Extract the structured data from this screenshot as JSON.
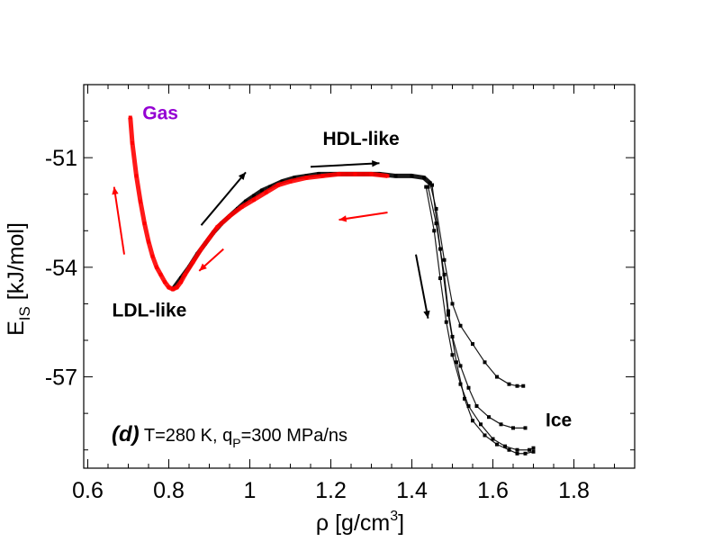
{
  "chart_data": {
    "type": "line",
    "title": "",
    "xlabel": {
      "symbol": "ρ",
      "unit": "[g/cm",
      "unit_sup": "3",
      "unit_end": "]"
    },
    "ylabel": {
      "main": "E",
      "sub": "IS",
      "unit": " [kJ/mol]"
    },
    "xlim": [
      0.59,
      1.95
    ],
    "ylim": [
      -59.5,
      -49.0
    ],
    "x_ticks": [
      0.6,
      0.8,
      1.0,
      1.2,
      1.4,
      1.6,
      1.8
    ],
    "x_tick_labels": [
      "0.6",
      "0.8",
      "1",
      "1.2",
      "1.4",
      "1.6",
      "1.8"
    ],
    "y_ticks": [
      -51,
      -54,
      -57
    ],
    "y_tick_labels": [
      "-51",
      "-54",
      "-57"
    ],
    "colors": {
      "compression": "#000000",
      "decompression": "#ff0000",
      "gas_label": "#9400d3"
    },
    "series": [
      {
        "name": "compression",
        "color": "#000000",
        "x": [
          0.81,
          0.83,
          0.85,
          0.87,
          0.89,
          0.91,
          0.93,
          0.95,
          0.97,
          0.99,
          1.01,
          1.03,
          1.05,
          1.08,
          1.11,
          1.14,
          1.17,
          1.2,
          1.24,
          1.28,
          1.32,
          1.36,
          1.4,
          1.43,
          1.445
        ],
        "y": [
          -54.6,
          -54.3,
          -54.0,
          -53.65,
          -53.35,
          -53.05,
          -52.8,
          -52.6,
          -52.4,
          -52.2,
          -52.05,
          -51.9,
          -51.8,
          -51.65,
          -51.55,
          -51.5,
          -51.45,
          -51.45,
          -51.45,
          -51.45,
          -51.45,
          -51.5,
          -51.5,
          -51.55,
          -51.7
        ]
      },
      {
        "name": "ice_branch_1",
        "color": "#000000",
        "x": [
          1.445,
          1.46,
          1.48,
          1.5,
          1.52,
          1.55,
          1.58,
          1.61,
          1.64,
          1.66,
          1.675
        ],
        "y": [
          -51.7,
          -52.4,
          -53.8,
          -55.0,
          -55.6,
          -56.1,
          -56.6,
          -57.0,
          -57.2,
          -57.25,
          -57.25
        ]
      },
      {
        "name": "ice_branch_2",
        "color": "#000000",
        "x": [
          1.44,
          1.46,
          1.48,
          1.49,
          1.5,
          1.52,
          1.54,
          1.56,
          1.59,
          1.62,
          1.65,
          1.68
        ],
        "y": [
          -51.8,
          -52.8,
          -54.2,
          -55.2,
          -55.9,
          -56.7,
          -57.3,
          -57.8,
          -58.1,
          -58.3,
          -58.4,
          -58.4
        ]
      },
      {
        "name": "ice_branch_3",
        "color": "#000000",
        "x": [
          1.435,
          1.455,
          1.47,
          1.485,
          1.5,
          1.52,
          1.54,
          1.57,
          1.6,
          1.63,
          1.66,
          1.69,
          1.7
        ],
        "y": [
          -51.8,
          -53.0,
          -54.3,
          -55.5,
          -56.4,
          -57.2,
          -57.8,
          -58.3,
          -58.7,
          -58.9,
          -59.0,
          -59.0,
          -58.95
        ]
      },
      {
        "name": "ice_branch_4",
        "color": "#000000",
        "x": [
          1.45,
          1.47,
          1.49,
          1.51,
          1.53,
          1.55,
          1.58,
          1.61,
          1.64,
          1.66,
          1.68,
          1.7
        ],
        "y": [
          -51.75,
          -53.5,
          -55.3,
          -56.6,
          -57.6,
          -58.2,
          -58.6,
          -58.85,
          -59.0,
          -59.1,
          -59.1,
          -59.05
        ]
      },
      {
        "name": "decompression",
        "color": "#ff0000",
        "x": [
          1.34,
          1.3,
          1.26,
          1.22,
          1.18,
          1.14,
          1.1,
          1.07,
          1.04,
          1.01,
          0.98,
          0.95,
          0.92,
          0.9,
          0.88,
          0.86,
          0.84,
          0.83,
          0.82,
          0.81,
          0.8,
          0.79,
          0.78,
          0.77,
          0.76,
          0.75,
          0.74,
          0.73,
          0.72,
          0.71,
          0.705
        ],
        "y": [
          -51.5,
          -51.45,
          -51.45,
          -51.45,
          -51.5,
          -51.55,
          -51.65,
          -51.75,
          -51.95,
          -52.15,
          -52.35,
          -52.6,
          -52.9,
          -53.2,
          -53.5,
          -53.85,
          -54.2,
          -54.4,
          -54.55,
          -54.6,
          -54.55,
          -54.4,
          -54.2,
          -54.0,
          -53.7,
          -53.3,
          -52.8,
          -52.2,
          -51.5,
          -50.6,
          -49.9
        ]
      }
    ],
    "annotations": [
      {
        "text": "Gas",
        "x": 0.735,
        "y": -49.95,
        "color": "#9400d3"
      },
      {
        "text": "HDL-like",
        "x": 1.18,
        "y": -50.65,
        "color": "#000000"
      },
      {
        "text": "LDL-like",
        "x": 0.66,
        "y": -55.35,
        "color": "#000000"
      },
      {
        "text": "Ice",
        "x": 1.73,
        "y": -58.35,
        "color": "#000000"
      }
    ],
    "arrows": [
      {
        "x1": 0.88,
        "y1": -52.85,
        "x2": 0.99,
        "y2": -51.4,
        "color": "#000000"
      },
      {
        "x1": 1.15,
        "y1": -51.25,
        "x2": 1.32,
        "y2": -51.15,
        "color": "#000000"
      },
      {
        "x1": 1.41,
        "y1": -53.65,
        "x2": 1.44,
        "y2": -55.4,
        "color": "#000000"
      },
      {
        "x1": 1.34,
        "y1": -52.5,
        "x2": 1.22,
        "y2": -52.7,
        "color": "#ff0000"
      },
      {
        "x1": 0.935,
        "y1": -53.5,
        "x2": 0.875,
        "y2": -54.1,
        "color": "#ff0000"
      },
      {
        "x1": 0.69,
        "y1": -53.65,
        "x2": 0.665,
        "y2": -51.8,
        "color": "#ff0000"
      }
    ],
    "panel_label": {
      "tag": "(d)",
      "text_a": " T=280 K, q",
      "text_sub": "P",
      "text_b": "=300 MPa/ns"
    }
  }
}
